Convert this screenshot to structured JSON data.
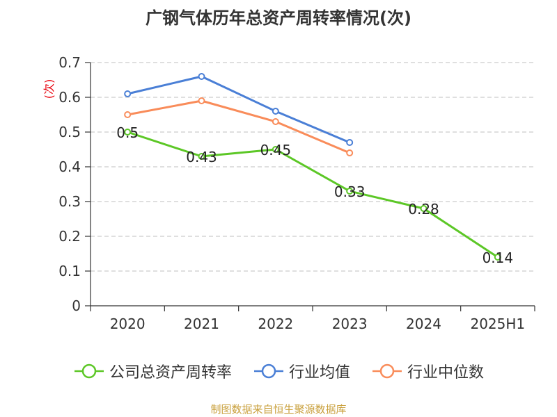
{
  "chart_data": {
    "type": "line",
    "title": "广钢气体历年总资产周转率情况(次)",
    "ylabel": "(次)",
    "xlabel": "",
    "categories": [
      "2020",
      "2021",
      "2022",
      "2023",
      "2024",
      "2025H1"
    ],
    "ylim": [
      0,
      0.7
    ],
    "yticks": [
      "0",
      "0.1",
      "0.2",
      "0.3",
      "0.4",
      "0.5",
      "0.6",
      "0.7"
    ],
    "grid": true,
    "legend_position": "bottom",
    "series": [
      {
        "name": "公司总资产周转率",
        "color": "#5cc726",
        "values": [
          0.5,
          0.43,
          0.45,
          0.33,
          0.28,
          0.14
        ],
        "labels": [
          "0.5",
          "0.43",
          "0.45",
          "0.33",
          "0.28",
          "0.14"
        ]
      },
      {
        "name": "行业均值",
        "color": "#4a7fd6",
        "values": [
          0.61,
          0.66,
          0.56,
          0.47,
          null,
          null
        ]
      },
      {
        "name": "行业中位数",
        "color": "#f98c5a",
        "values": [
          0.55,
          0.59,
          0.53,
          0.44,
          null,
          null
        ]
      }
    ]
  },
  "source_note": "制图数据来自恒生聚源数据库",
  "ylabel_color": "#e8000b"
}
